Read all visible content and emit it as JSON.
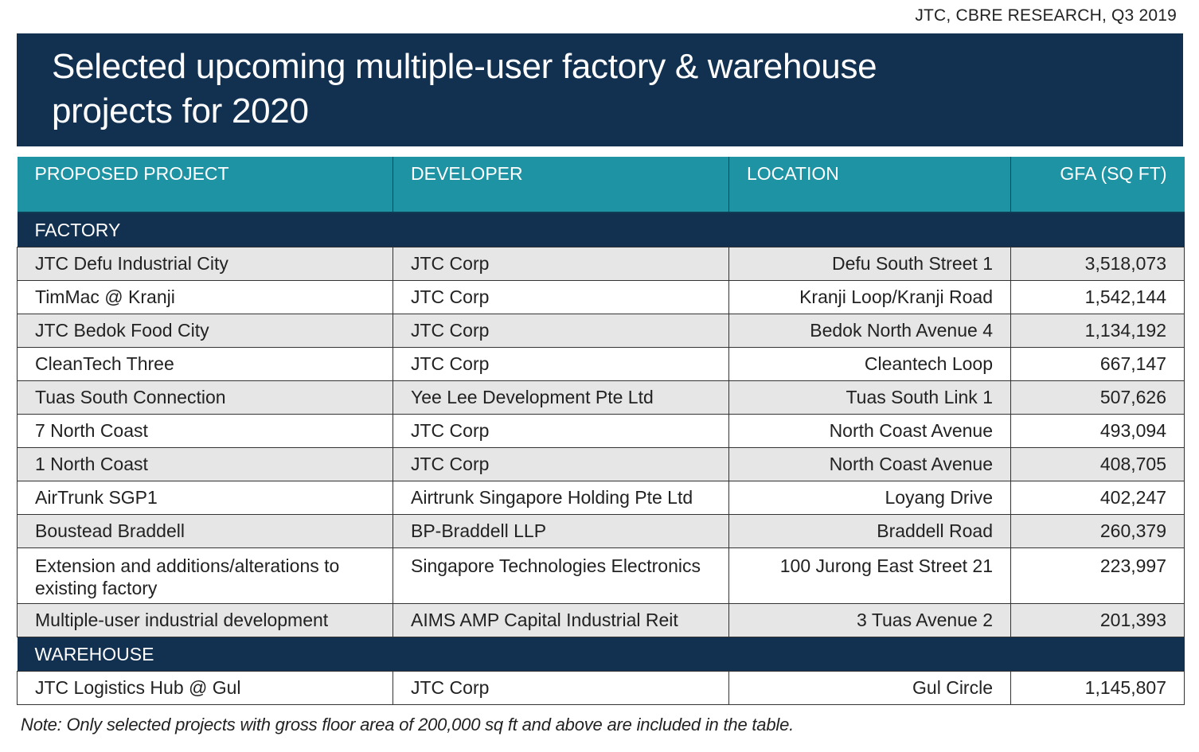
{
  "source": "JTC, CBRE RESEARCH, Q3 2019",
  "title": "Selected upcoming multiple-user factory & warehouse projects for 2020",
  "columns": [
    "PROPOSED PROJECT",
    "DEVELOPER",
    "LOCATION",
    "GFA (SQ FT)"
  ],
  "sections": [
    {
      "label": "FACTORY",
      "rows": [
        {
          "project": "JTC Defu Industrial City",
          "developer": "JTC Corp",
          "location": "Defu South Street 1",
          "gfa": "3,518,073"
        },
        {
          "project": "TimMac @ Kranji",
          "developer": "JTC Corp",
          "location": "Kranji Loop/Kranji Road",
          "gfa": "1,542,144"
        },
        {
          "project": "JTC Bedok Food City",
          "developer": "JTC Corp",
          "location": "Bedok North Avenue 4",
          "gfa": "1,134,192"
        },
        {
          "project": "CleanTech Three",
          "developer": "JTC Corp",
          "location": "Cleantech Loop",
          "gfa": "667,147"
        },
        {
          "project": "Tuas South Connection",
          "developer": "Yee Lee Development Pte Ltd",
          "location": "Tuas South Link 1",
          "gfa": "507,626"
        },
        {
          "project": "7 North Coast",
          "developer": "JTC Corp",
          "location": "North Coast Avenue",
          "gfa": "493,094"
        },
        {
          "project": "1 North Coast",
          "developer": "JTC Corp",
          "location": "North Coast Avenue",
          "gfa": "408,705"
        },
        {
          "project": "AirTrunk SGP1",
          "developer": "Airtrunk Singapore Holding Pte Ltd",
          "location": "Loyang Drive",
          "gfa": "402,247"
        },
        {
          "project": "Boustead Braddell",
          "developer": "BP-Braddell LLP",
          "location": "Braddell Road",
          "gfa": "260,379"
        },
        {
          "project": "Extension and additions/alterations to existing factory",
          "developer": "Singapore Technologies Electronics",
          "location": "100 Jurong East Street 21",
          "gfa": "223,997"
        },
        {
          "project": "Multiple-user industrial development",
          "developer": "AIMS AMP Capital Industrial Reit",
          "location": "3 Tuas Avenue 2",
          "gfa": "201,393"
        }
      ]
    },
    {
      "label": "WAREHOUSE",
      "rows": [
        {
          "project": "JTC Logistics Hub @ Gul",
          "developer": "JTC Corp",
          "location": "Gul Circle",
          "gfa": "1,145,807"
        }
      ]
    }
  ],
  "note": "Note: Only selected projects with gross floor area of 200,000 sq ft and above are included in the table."
}
